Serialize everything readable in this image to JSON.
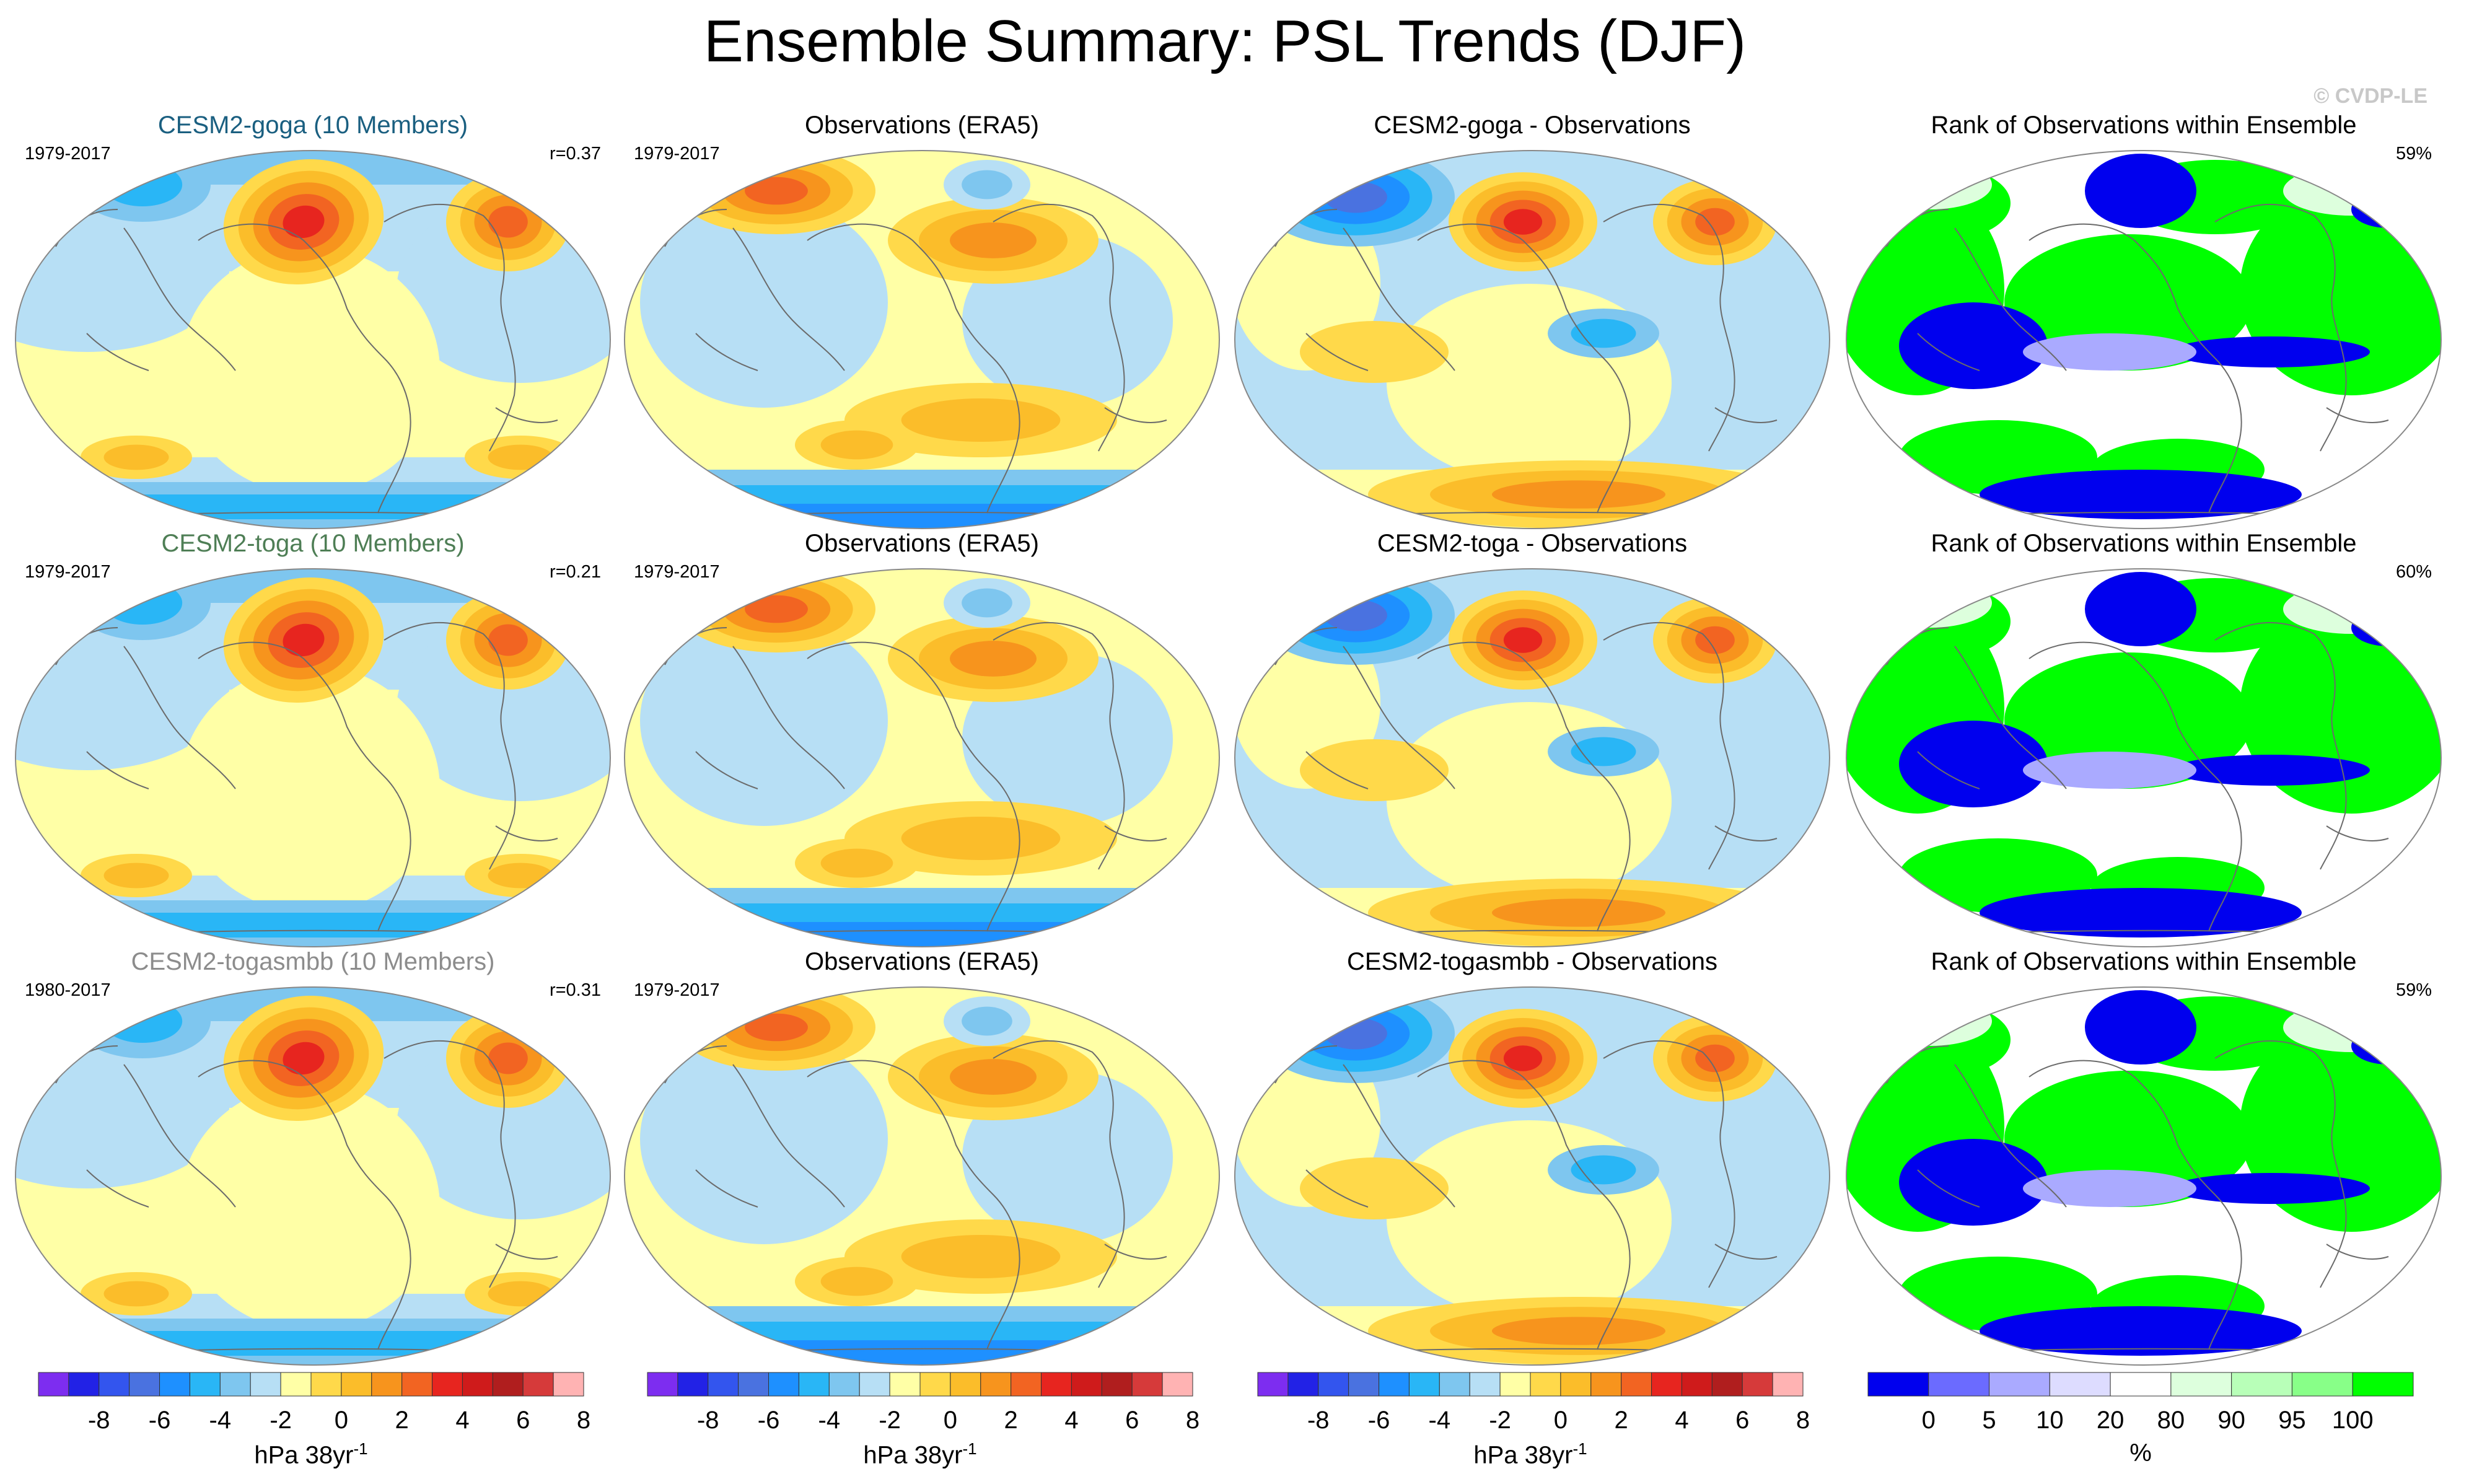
{
  "page": {
    "title": "Ensemble Summary: PSL Trends (DJF)",
    "watermark": "© CVDP-LE"
  },
  "colors": {
    "trend_scale": [
      "#7d2df0",
      "#2222e6",
      "#3355ee",
      "#4a72e0",
      "#1e90ff",
      "#29b6f6",
      "#7ec6ef",
      "#b7dff5",
      "#ffffa6",
      "#ffd94a",
      "#fbbd2a",
      "#f7941d",
      "#f26422",
      "#e7251f",
      "#cf1b1b",
      "#b01e1e",
      "#d63a3a",
      "#ffb3b3"
    ],
    "rank_scale": [
      "#0000ee",
      "#6b6bff",
      "#aaaaff",
      "#dddcff",
      "#ffffff",
      "#ddffdd",
      "#b8ffb8",
      "#88ff88",
      "#00ff00"
    ],
    "ocean_base": "#b7dff5",
    "coast": "#6b6b6b"
  },
  "chart_data": [
    {
      "id": "r1c1",
      "type": "heatmap",
      "title": "CESM2-goga (10 Members)",
      "title_color": "#1a5f80",
      "years": "1979-2017",
      "stat": "r=0.37",
      "pattern": "model",
      "units": "hPa 38yr-1"
    },
    {
      "id": "r1c2",
      "type": "heatmap",
      "title": "Observations (ERA5)",
      "years": "1979-2017",
      "pattern": "obs",
      "units": "hPa 38yr-1"
    },
    {
      "id": "r1c3",
      "type": "heatmap",
      "title": "CESM2-goga - Observations",
      "pattern": "diff",
      "units": "hPa 38yr-1"
    },
    {
      "id": "r1c4",
      "type": "heatmap",
      "title": "Rank of Observations within Ensemble",
      "stat": "59%",
      "pattern": "rank",
      "units": "%"
    },
    {
      "id": "r2c1",
      "type": "heatmap",
      "title": "CESM2-toga (10 Members)",
      "title_color": "#4e7e55",
      "years": "1979-2017",
      "stat": "r=0.21",
      "pattern": "model",
      "units": "hPa 38yr-1"
    },
    {
      "id": "r2c2",
      "type": "heatmap",
      "title": "Observations (ERA5)",
      "years": "1979-2017",
      "pattern": "obs",
      "units": "hPa 38yr-1"
    },
    {
      "id": "r2c3",
      "type": "heatmap",
      "title": "CESM2-toga - Observations",
      "pattern": "diff",
      "units": "hPa 38yr-1"
    },
    {
      "id": "r2c4",
      "type": "heatmap",
      "title": "Rank of Observations within Ensemble",
      "stat": "60%",
      "pattern": "rank",
      "units": "%"
    },
    {
      "id": "r3c1",
      "type": "heatmap",
      "title": "CESM2-togasmbb (10 Members)",
      "title_color": "#8c8c8c",
      "years": "1980-2017",
      "stat": "r=0.31",
      "pattern": "model",
      "units": "hPa 38yr-1"
    },
    {
      "id": "r3c2",
      "type": "heatmap",
      "title": "Observations (ERA5)",
      "years": "1979-2017",
      "pattern": "obs",
      "units": "hPa 38yr-1"
    },
    {
      "id": "r3c3",
      "type": "heatmap",
      "title": "CESM2-togasmbb - Observations",
      "pattern": "diff",
      "units": "hPa 38yr-1"
    },
    {
      "id": "r3c4",
      "type": "heatmap",
      "title": "Rank of Observations within Ensemble",
      "stat": "59%",
      "pattern": "rank",
      "units": "%"
    }
  ],
  "colorbars": {
    "trend": {
      "labels": [
        "-8",
        "-6",
        "-4",
        "-2",
        "0",
        "2",
        "4",
        "6",
        "8"
      ],
      "unit_base": "hPa 38yr",
      "unit_sup": "-1"
    },
    "rank": {
      "labels": [
        "0",
        "5",
        "10",
        "20",
        "80",
        "90",
        "95",
        "100"
      ],
      "unit": "%"
    }
  }
}
